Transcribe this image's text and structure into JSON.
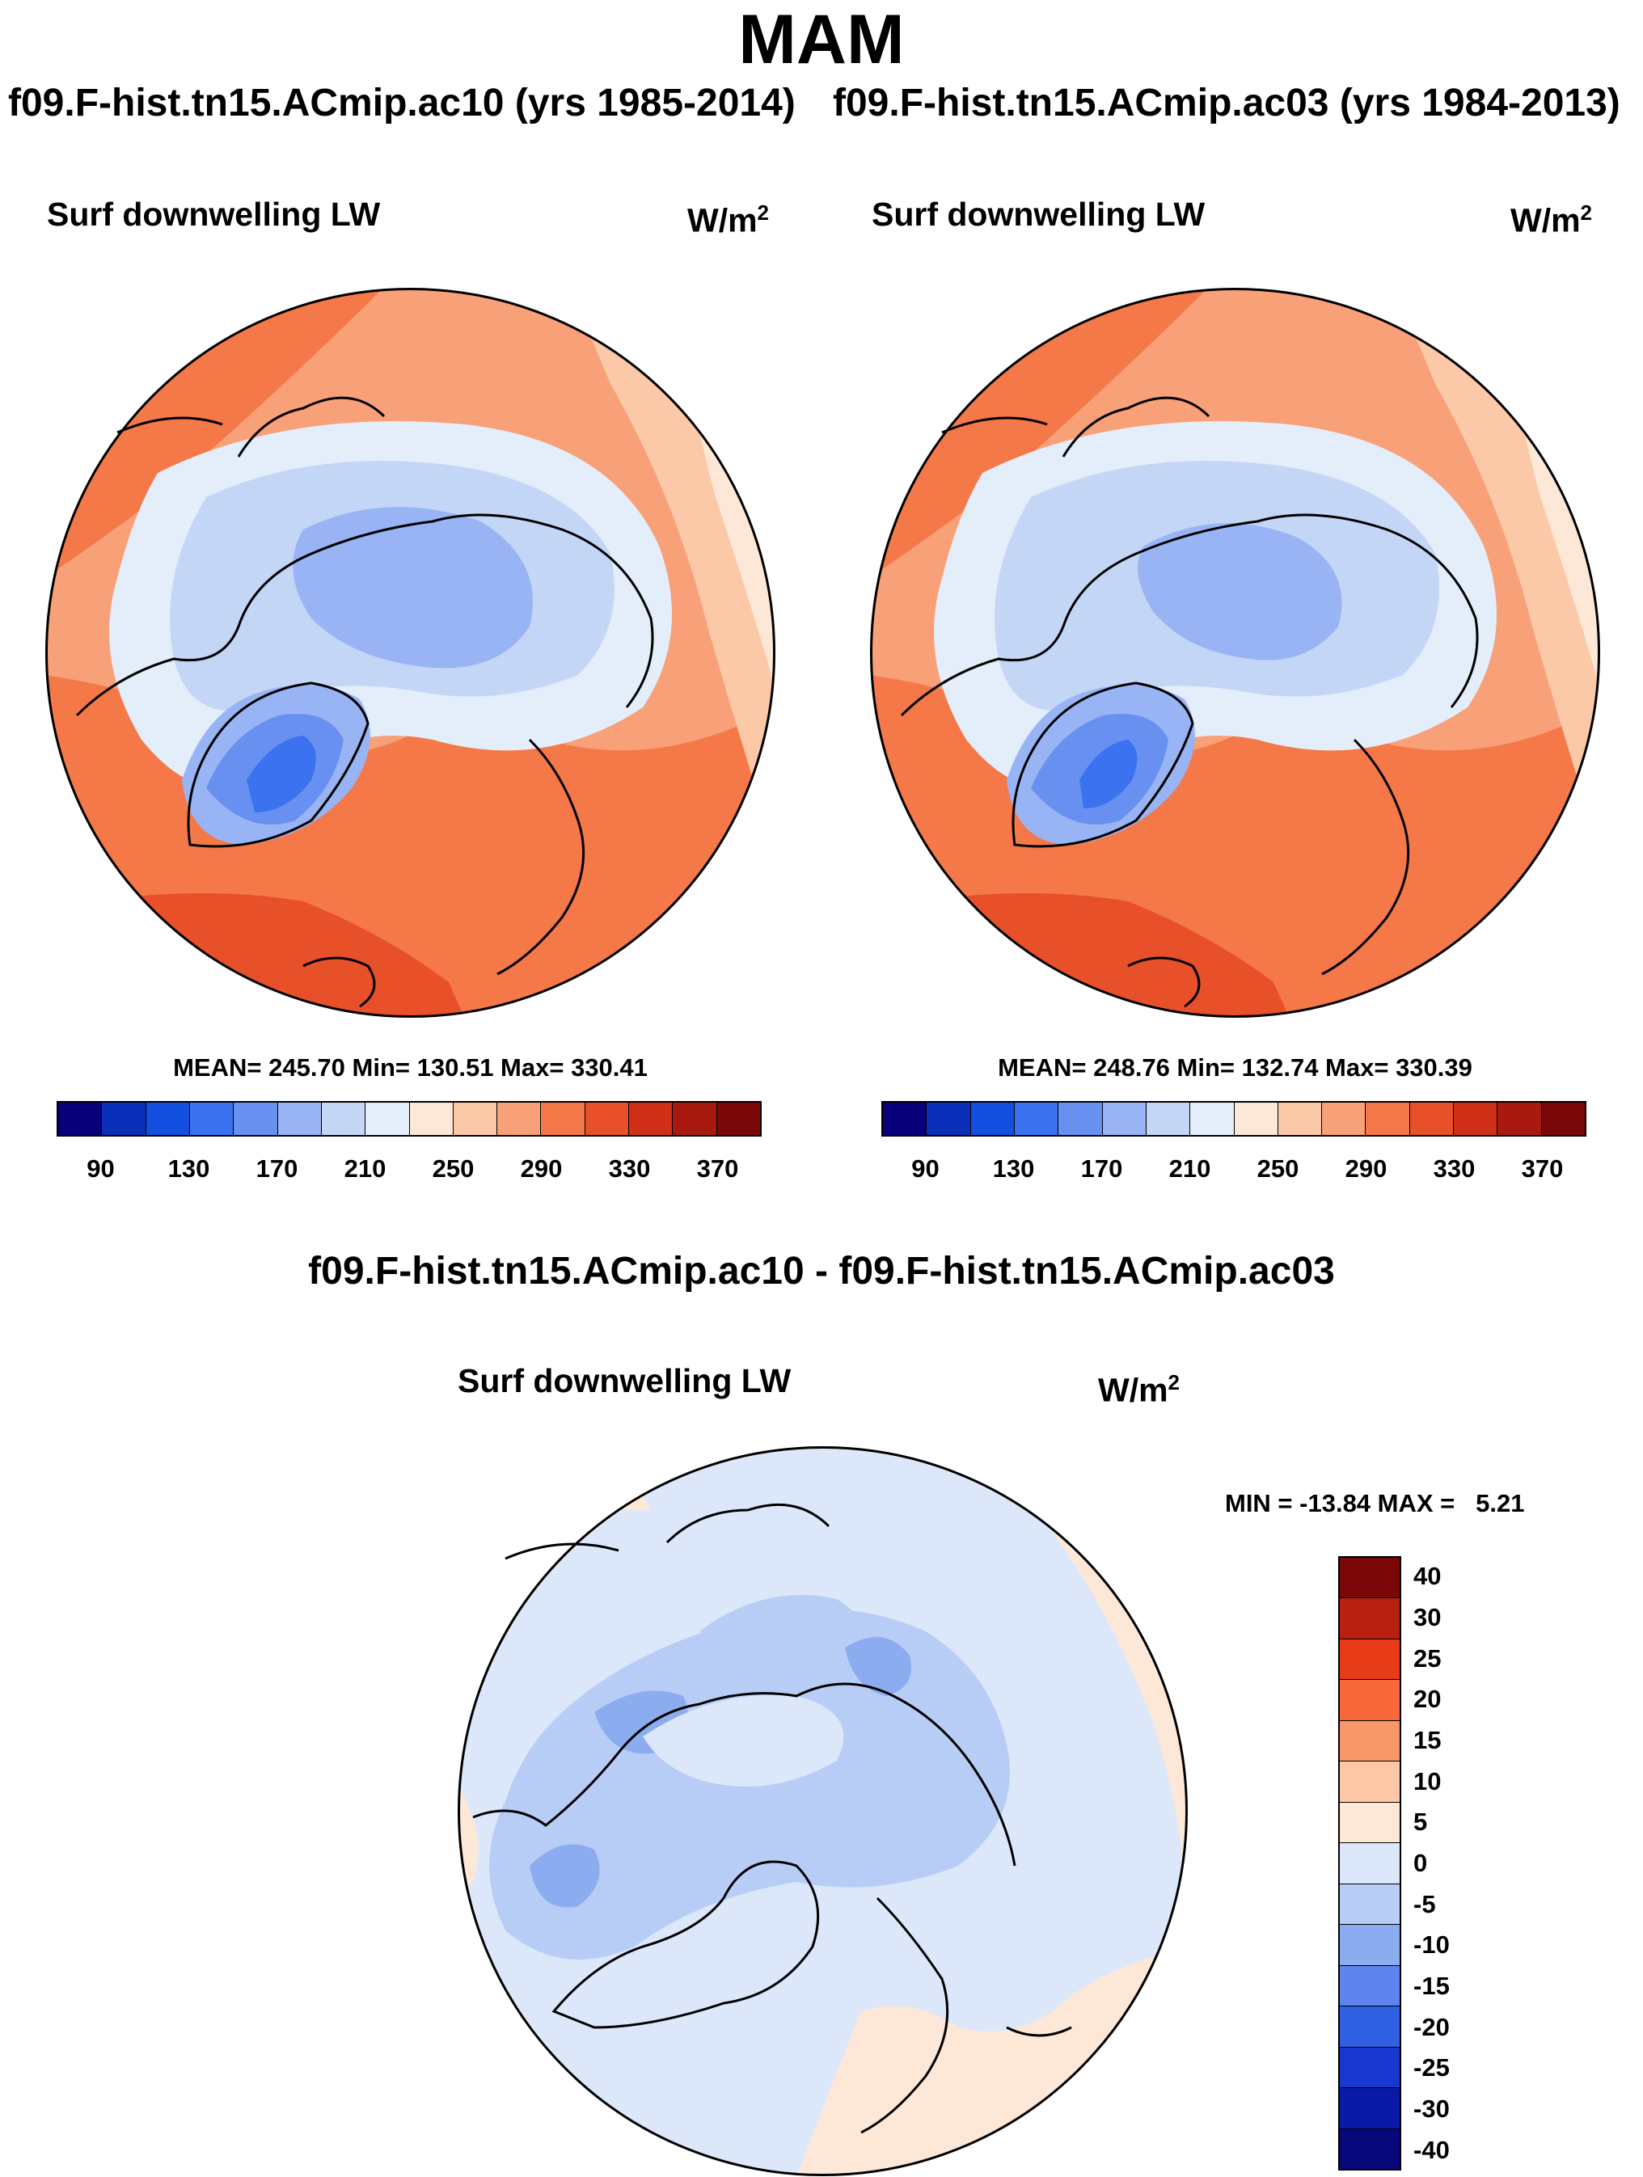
{
  "title": "MAM",
  "panels": [
    {
      "case_label": "f09.F-hist.tn15.ACmip.ac10 (yrs 1985-2014)",
      "variable": "Surf downwelling LW",
      "units_base": "W/m",
      "units_exp": "2",
      "stats": "MEAN= 245.70  Min= 130.51  Max= 330.41"
    },
    {
      "case_label": "f09.F-hist.tn15.ACmip.ac03 (yrs 1984-2013)",
      "variable": "Surf downwelling LW",
      "units_base": "W/m",
      "units_exp": "2",
      "stats": "MEAN= 248.76  Min= 132.74  Max= 330.39"
    }
  ],
  "difference": {
    "title": "f09.F-hist.tn15.ACmip.ac10 - f09.F-hist.tn15.ACmip.ac03",
    "variable": "Surf downwelling LW",
    "units_base": "W/m",
    "units_exp": "2",
    "stats": "MIN = -13.84 MAX =   5.21"
  },
  "colorbar_abs": {
    "colors": [
      "#08007a",
      "#0a2fb8",
      "#1450e0",
      "#3a72f0",
      "#6890f0",
      "#98b4f4",
      "#c4d6f6",
      "#e4eefa",
      "#fde8d8",
      "#fbc8a8",
      "#f8a078",
      "#f47848",
      "#e8502a",
      "#d03018",
      "#a81a10",
      "#7a0808"
    ],
    "labels": [
      "90",
      "130",
      "170",
      "210",
      "250",
      "290",
      "330",
      "370"
    ]
  },
  "colorbar_diff": {
    "colors": [
      "#7a0808",
      "#b82010",
      "#e83c18",
      "#f86838",
      "#f89868",
      "#fcc8a8",
      "#fde8d8",
      "#dce8fa",
      "#b8cdf6",
      "#8cacf0",
      "#5c84ec",
      "#3060e4",
      "#1838d0",
      "#0a1aa8",
      "#08087a"
    ],
    "labels": [
      "40",
      "30",
      "25",
      "20",
      "15",
      "10",
      "5",
      "0",
      "-5",
      "-10",
      "-15",
      "-20",
      "-25",
      "-30",
      "-40"
    ]
  },
  "colors": {
    "background": "#ffffff",
    "outline": "#000000"
  }
}
